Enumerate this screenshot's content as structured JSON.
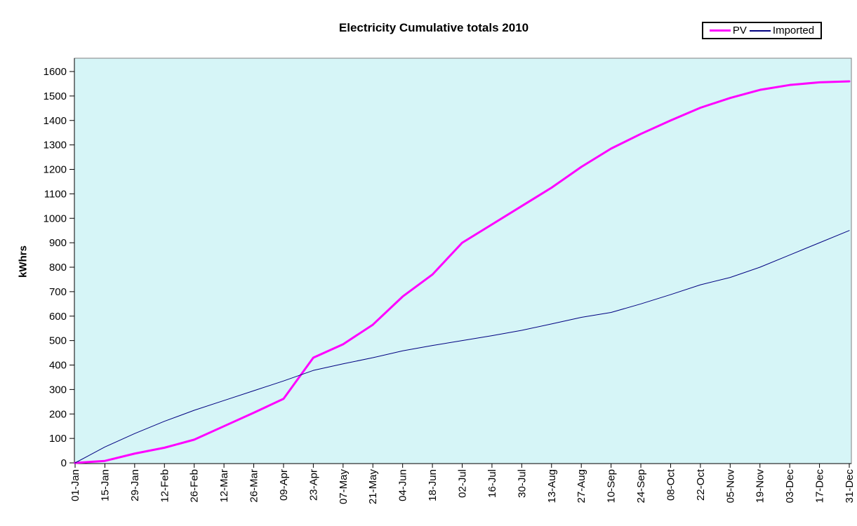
{
  "chart_data": {
    "type": "line",
    "title": "Electricity Cumulative totals 2010",
    "ylabel": "kWhrs",
    "xlabel": "",
    "grid": "off",
    "legend_position": "top-right",
    "plot_bg_color": "#D6F5F7",
    "plot_border_color": "#808080",
    "axis_color": "#000000",
    "ylim": [
      0,
      1655
    ],
    "yticks": [
      0,
      100,
      200,
      300,
      400,
      500,
      600,
      700,
      800,
      900,
      1000,
      1100,
      1200,
      1300,
      1400,
      1500,
      1600
    ],
    "categories": [
      "01-Jan",
      "15-Jan",
      "29-Jan",
      "12-Feb",
      "26-Feb",
      "12-Mar",
      "26-Mar",
      "09-Apr",
      "23-Apr",
      "07-May",
      "21-May",
      "04-Jun",
      "18-Jun",
      "02-Jul",
      "16-Jul",
      "30-Jul",
      "13-Aug",
      "27-Aug",
      "10-Sep",
      "24-Sep",
      "08-Oct",
      "22-Oct",
      "05-Nov",
      "19-Nov",
      "03-Dec",
      "17-Dec",
      "31-Dec"
    ],
    "series": [
      {
        "name": "PV",
        "color": "#FF00FF",
        "line_width": 3,
        "values": [
          0,
          8,
          38,
          62,
          95,
          150,
          205,
          262,
          430,
          485,
          565,
          680,
          770,
          900,
          975,
          1050,
          1125,
          1210,
          1285,
          1345,
          1400,
          1452,
          1492,
          1525,
          1545,
          1556,
          1560
        ]
      },
      {
        "name": "Imported",
        "color": "#000080",
        "line_width": 1,
        "values": [
          0,
          65,
          120,
          170,
          215,
          255,
          295,
          335,
          378,
          405,
          430,
          458,
          480,
          500,
          520,
          542,
          568,
          595,
          615,
          650,
          688,
          728,
          758,
          800,
          850,
          900,
          950
        ]
      }
    ]
  }
}
